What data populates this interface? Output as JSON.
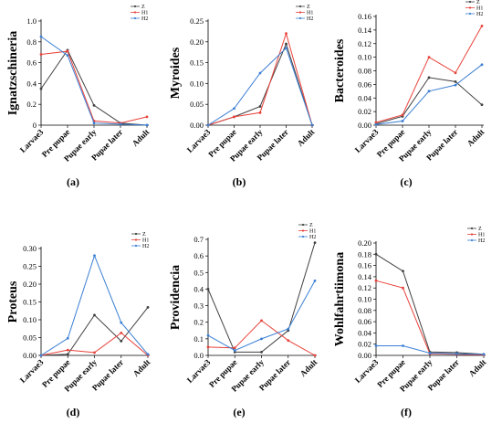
{
  "series_colors": {
    "Z": "#404040",
    "H1": "#e8413a",
    "H2": "#3b7fd4"
  },
  "chart_data": [
    {
      "type": "line",
      "panel_label": "(a)",
      "ylabel": "Ignatzschineria",
      "categories": [
        "Larvae3",
        "Pre pupae",
        "Pupae early",
        "Pupae later",
        "Adult"
      ],
      "ylim": [
        0,
        1.0
      ],
      "yticks": [
        0,
        0.2,
        0.4,
        0.6,
        0.8,
        1.0
      ],
      "ytick_labels": [
        "0",
        "0.2",
        "0.4",
        "0.6",
        "0.8",
        "1.0"
      ],
      "legend": "top-right",
      "series": [
        {
          "name": "Z",
          "values": [
            0.35,
            0.72,
            0.19,
            0.02,
            0.0
          ]
        },
        {
          "name": "H1",
          "values": [
            0.68,
            0.71,
            0.04,
            0.02,
            0.08
          ]
        },
        {
          "name": "H2",
          "values": [
            0.85,
            0.67,
            0.02,
            0.01,
            0.0
          ]
        }
      ]
    },
    {
      "type": "line",
      "panel_label": "(b)",
      "ylabel": "Myroides",
      "categories": [
        "Larvae3",
        "Pre pupae",
        "Pupae early",
        "Pupae later",
        "Adult"
      ],
      "ylim": [
        0,
        0.25
      ],
      "yticks": [
        0,
        0.05,
        0.1,
        0.15,
        0.2,
        0.25
      ],
      "ytick_labels": [
        "0.00",
        "0.05",
        "0.10",
        "0.15",
        "0.20",
        "0.25"
      ],
      "legend": "top-right",
      "series": [
        {
          "name": "Z",
          "values": [
            0.0,
            0.02,
            0.045,
            0.195,
            0.0
          ]
        },
        {
          "name": "H1",
          "values": [
            0.0,
            0.02,
            0.03,
            0.22,
            0.0
          ]
        },
        {
          "name": "H2",
          "values": [
            0.0,
            0.04,
            0.125,
            0.185,
            0.0
          ]
        }
      ]
    },
    {
      "type": "line",
      "panel_label": "(c)",
      "ylabel": "Bacteroides",
      "categories": [
        "Larvae3",
        "Pre pupae",
        "Pupae early",
        "Pupae later",
        "Adult"
      ],
      "ylim": [
        0,
        0.16
      ],
      "yticks": [
        0,
        0.02,
        0.04,
        0.06,
        0.08,
        0.1,
        0.12,
        0.14,
        0.16
      ],
      "ytick_labels": [
        "0.00",
        "0.02",
        "0.04",
        "0.06",
        "0.08",
        "0.10",
        "0.12",
        "0.14",
        "0.16"
      ],
      "legend": "top-right",
      "series": [
        {
          "name": "Z",
          "values": [
            0.002,
            0.013,
            0.07,
            0.064,
            0.03
          ]
        },
        {
          "name": "H1",
          "values": [
            0.004,
            0.015,
            0.1,
            0.077,
            0.146
          ]
        },
        {
          "name": "H2",
          "values": [
            0.001,
            0.006,
            0.05,
            0.059,
            0.089
          ]
        }
      ]
    },
    {
      "type": "line",
      "panel_label": "(d)",
      "ylabel": "Proteus",
      "categories": [
        "Larvae3",
        "Pre pupae",
        "Pupae early",
        "Pupae later",
        "Adult"
      ],
      "ylim": [
        0,
        0.3
      ],
      "yticks": [
        0,
        0.05,
        0.1,
        0.15,
        0.2,
        0.25,
        0.3
      ],
      "ytick_labels": [
        "0.00",
        "0.05",
        "0.10",
        "0.15",
        "0.20",
        "0.25",
        "0.30"
      ],
      "legend": "top-right",
      "series": [
        {
          "name": "Z",
          "values": [
            0.0,
            0.003,
            0.113,
            0.04,
            0.135
          ]
        },
        {
          "name": "H1",
          "values": [
            0.0,
            0.015,
            0.008,
            0.063,
            0.0
          ]
        },
        {
          "name": "H2",
          "values": [
            0.0,
            0.048,
            0.28,
            0.092,
            0.003
          ]
        }
      ]
    },
    {
      "type": "line",
      "panel_label": "(e)",
      "ylabel": "Providencia",
      "categories": [
        "Larvae3",
        "Pre pupae",
        "Pupae early",
        "Pupae later",
        "Adult"
      ],
      "ylim": [
        0,
        0.7
      ],
      "yticks": [
        0,
        0.1,
        0.2,
        0.3,
        0.4,
        0.5,
        0.6,
        0.7
      ],
      "ytick_labels": [
        "0.0",
        "0.1",
        "0.2",
        "0.3",
        "0.4",
        "0.5",
        "0.6",
        "0.7"
      ],
      "legend": "top-right",
      "series": [
        {
          "name": "Z",
          "values": [
            0.4,
            0.02,
            0.02,
            0.15,
            0.68
          ]
        },
        {
          "name": "H1",
          "values": [
            0.05,
            0.045,
            0.21,
            0.09,
            0.0
          ]
        },
        {
          "name": "H2",
          "values": [
            0.12,
            0.03,
            0.1,
            0.16,
            0.45
          ]
        }
      ]
    },
    {
      "type": "line",
      "panel_label": "(f)",
      "ylabel": "Wohlfahrtiimona",
      "categories": [
        "Larvae3",
        "Pre pupae",
        "Pupae early",
        "Pupae later",
        "Adult"
      ],
      "ylim": [
        0,
        0.2
      ],
      "yticks": [
        0,
        0.02,
        0.04,
        0.06,
        0.08,
        0.1,
        0.12,
        0.14,
        0.16,
        0.18,
        0.2
      ],
      "ytick_labels": [
        "0.00",
        "0.02",
        "0.04",
        "0.06",
        "0.08",
        "0.10",
        "0.12",
        "0.14",
        "0.16",
        "0.18",
        "0.20"
      ],
      "legend": "top-right",
      "series": [
        {
          "name": "Z",
          "values": [
            0.18,
            0.15,
            0.006,
            0.005,
            0.002
          ]
        },
        {
          "name": "H1",
          "values": [
            0.133,
            0.12,
            0.003,
            0.002,
            0.001
          ]
        },
        {
          "name": "H2",
          "values": [
            0.017,
            0.017,
            0.004,
            0.003,
            0.002
          ]
        }
      ]
    }
  ]
}
